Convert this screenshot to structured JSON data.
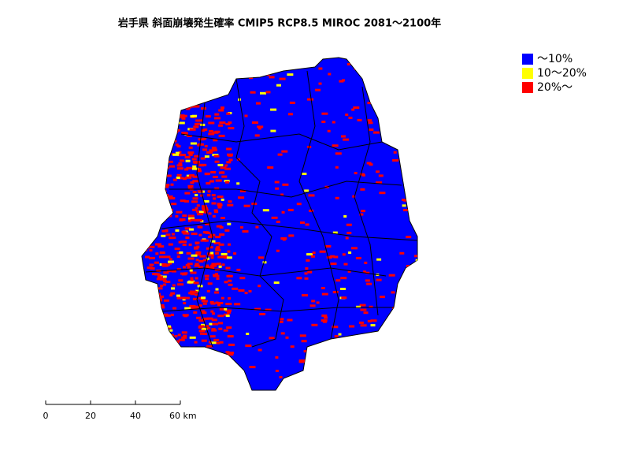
{
  "title": "岩手県 斜面崩壊発生確率 CMIP5 RCP8.5 MIROC 2081～2100年",
  "legend": {
    "items": [
      {
        "label": "～10%",
        "color": "#0000ff"
      },
      {
        "label": "10～20%",
        "color": "#ffff00"
      },
      {
        "label": "20%～",
        "color": "#ff0000"
      }
    ]
  },
  "scale_bar": {
    "ticks": [
      0,
      20,
      40,
      {
        "value": 60,
        "label": "60 km"
      }
    ]
  }
}
